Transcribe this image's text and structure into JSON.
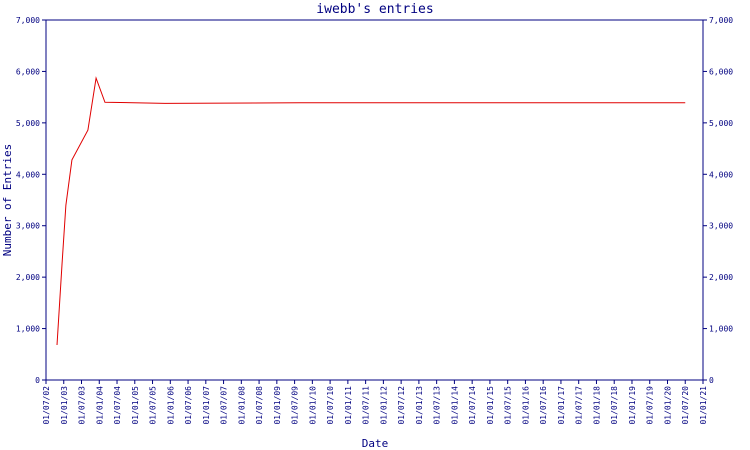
{
  "chart_data": {
    "type": "line",
    "title": "iwebb's entries",
    "xlabel": "Date",
    "ylabel": "Number of Entries",
    "x": [
      2002.81,
      2002.95,
      2003.06,
      2003.23,
      2003.68,
      2003.91,
      2004.16,
      2005.85,
      2009.65,
      2020.5
    ],
    "series": [
      {
        "name": "entries",
        "color": "#e00000",
        "values": [
          680,
          2240,
          3400,
          4280,
          4860,
          5870,
          5400,
          5380,
          5390,
          5390
        ]
      }
    ],
    "xlim": [
      2002.5,
      2021
    ],
    "xticks": [
      {
        "value": 2002.5,
        "label": "01/07/02"
      },
      {
        "value": 2003,
        "label": "01/01/03"
      },
      {
        "value": 2003.5,
        "label": "01/07/03"
      },
      {
        "value": 2004,
        "label": "01/01/04"
      },
      {
        "value": 2004.5,
        "label": "01/07/04"
      },
      {
        "value": 2005,
        "label": "01/01/05"
      },
      {
        "value": 2005.5,
        "label": "01/07/05"
      },
      {
        "value": 2006,
        "label": "01/01/06"
      },
      {
        "value": 2006.5,
        "label": "01/07/06"
      },
      {
        "value": 2007,
        "label": "01/01/07"
      },
      {
        "value": 2007.5,
        "label": "01/07/07"
      },
      {
        "value": 2008,
        "label": "01/01/08"
      },
      {
        "value": 2008.5,
        "label": "01/07/08"
      },
      {
        "value": 2009,
        "label": "01/01/09"
      },
      {
        "value": 2009.5,
        "label": "01/07/09"
      },
      {
        "value": 2010,
        "label": "01/01/10"
      },
      {
        "value": 2010.5,
        "label": "01/07/10"
      },
      {
        "value": 2011,
        "label": "01/01/11"
      },
      {
        "value": 2011.5,
        "label": "01/07/11"
      },
      {
        "value": 2012,
        "label": "01/01/12"
      },
      {
        "value": 2012.5,
        "label": "01/07/12"
      },
      {
        "value": 2013,
        "label": "01/01/13"
      },
      {
        "value": 2013.5,
        "label": "01/07/13"
      },
      {
        "value": 2014,
        "label": "01/01/14"
      },
      {
        "value": 2014.5,
        "label": "01/07/14"
      },
      {
        "value": 2015,
        "label": "01/01/15"
      },
      {
        "value": 2015.5,
        "label": "01/07/15"
      },
      {
        "value": 2016,
        "label": "01/01/16"
      },
      {
        "value": 2016.5,
        "label": "01/07/16"
      },
      {
        "value": 2017,
        "label": "01/01/17"
      },
      {
        "value": 2017.5,
        "label": "01/07/17"
      },
      {
        "value": 2018,
        "label": "01/01/18"
      },
      {
        "value": 2018.5,
        "label": "01/07/18"
      },
      {
        "value": 2019,
        "label": "01/01/19"
      },
      {
        "value": 2019.5,
        "label": "01/07/19"
      },
      {
        "value": 2020,
        "label": "01/01/20"
      },
      {
        "value": 2020.5,
        "label": "01/07/20"
      },
      {
        "value": 2021,
        "label": "01/01/21"
      }
    ],
    "ylim": [
      0,
      7000
    ],
    "yticks": [
      0,
      {
        "value": 1000,
        "label": "1,000"
      },
      {
        "value": 2000,
        "label": "2,000"
      },
      {
        "value": 3000,
        "label": "3,000"
      },
      {
        "value": 4000,
        "label": "4,000"
      },
      {
        "value": 5000,
        "label": "5,000"
      },
      {
        "value": 6000,
        "label": "6,000"
      },
      {
        "value": 7000,
        "label": "7,000"
      }
    ],
    "grid": false
  }
}
